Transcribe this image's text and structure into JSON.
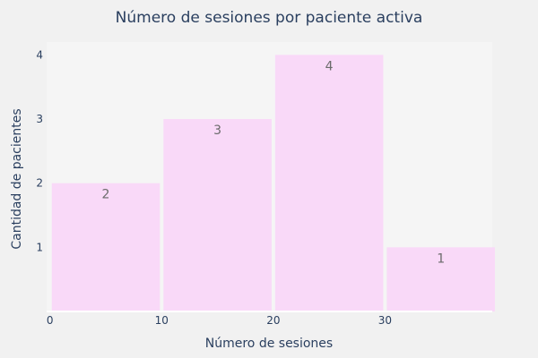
{
  "chart_data": {
    "type": "bar",
    "title": "Número de sesiones por paciente activa",
    "xlabel": "Número de sesiones",
    "ylabel": "Cantidad de pacientes",
    "bins": [
      {
        "x0": 0,
        "x1": 10,
        "value": 2
      },
      {
        "x0": 10,
        "x1": 20,
        "value": 3
      },
      {
        "x0": 20,
        "x1": 30,
        "value": 4
      },
      {
        "x0": 30,
        "x1": 40,
        "value": 1
      }
    ],
    "x_ticks": [
      0,
      10,
      20,
      30
    ],
    "y_ticks": [
      1,
      2,
      3,
      4
    ],
    "xlim": [
      -0.3,
      39.6
    ],
    "ylim": [
      0,
      4.2
    ],
    "grid": false,
    "data_labels": true,
    "colors": {
      "bar_fill": "#f9d9f8",
      "plot_background": "#f5f5f5",
      "page_background": "#f1f1f1",
      "axis_line": "#ffffff",
      "text": "#2a3f5f",
      "data_label": "#6b6b6b"
    }
  }
}
